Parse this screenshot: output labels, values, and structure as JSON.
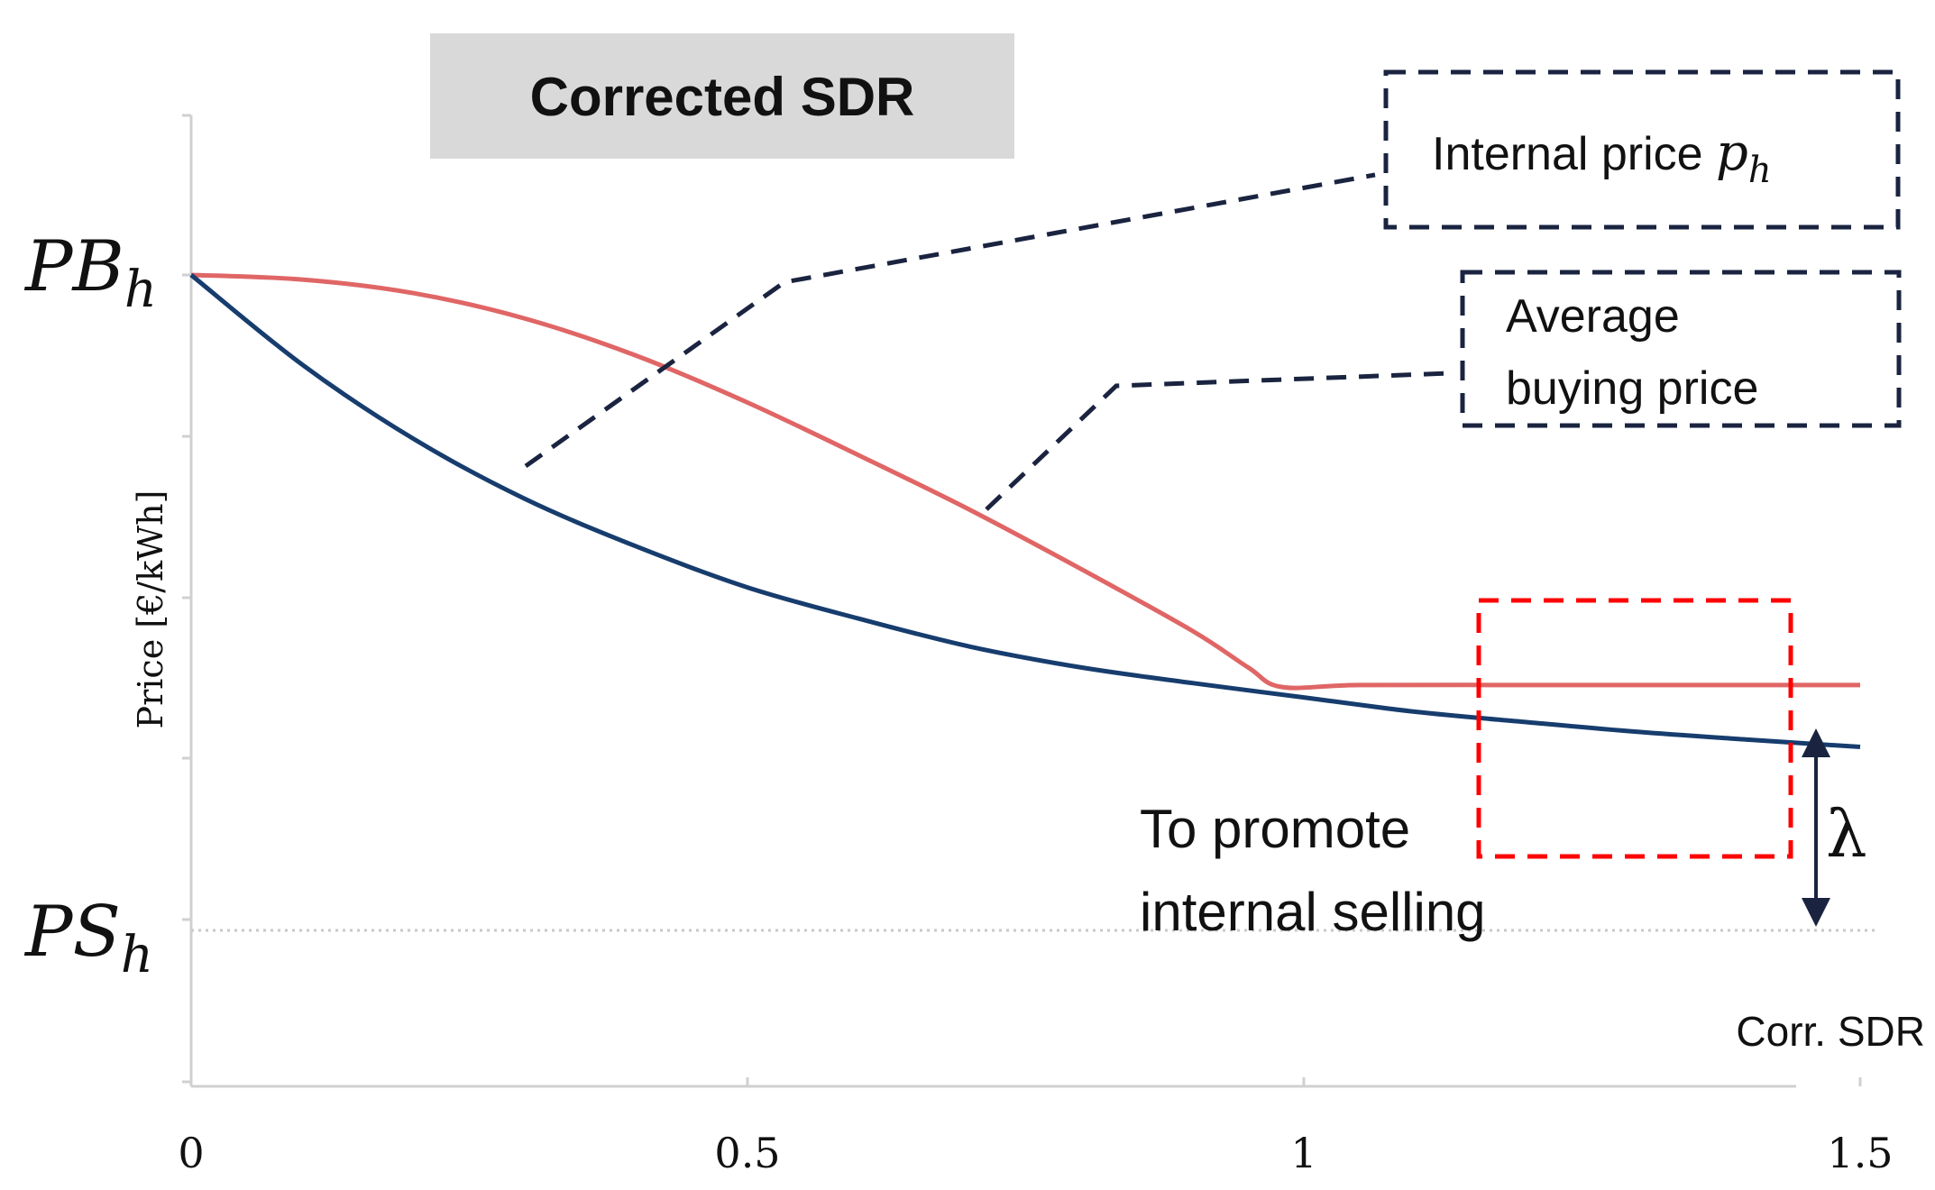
{
  "chart_data": {
    "type": "line",
    "title": "Corrected SDR",
    "xlabel": "Corr. SDR",
    "ylabel": "Price [€/kWh]",
    "xlim": [
      0,
      1.5
    ],
    "x_ticks": [
      "0",
      "0.5",
      "1",
      "1.5"
    ],
    "y_tick_labels": {
      "top_main": "PB",
      "top_sub": "h",
      "bottom_main": "PS",
      "bottom_sub": "h"
    },
    "grid": false,
    "series": [
      {
        "name": "Internal price p_h",
        "color": "#e06666",
        "x": [
          0,
          0.1,
          0.2,
          0.3,
          0.4,
          0.5,
          0.6,
          0.7,
          0.8,
          0.9,
          0.95,
          0.98,
          1.05,
          1.2,
          1.35,
          1.5
        ],
        "y": [
          1.0,
          0.993,
          0.972,
          0.933,
          0.876,
          0.804,
          0.723,
          0.639,
          0.548,
          0.453,
          0.397,
          0.367,
          0.37,
          0.37,
          0.37,
          0.37
        ]
      },
      {
        "name": "Average buying price",
        "color": "#173d6e",
        "x": [
          0,
          0.1,
          0.2,
          0.3,
          0.4,
          0.5,
          0.6,
          0.7,
          0.8,
          0.9,
          1.0,
          1.1,
          1.2,
          1.3,
          1.4,
          1.5
        ],
        "y": [
          1.0,
          0.862,
          0.748,
          0.656,
          0.583,
          0.52,
          0.472,
          0.429,
          0.397,
          0.373,
          0.351,
          0.329,
          0.313,
          0.298,
          0.286,
          0.275
        ]
      }
    ],
    "annotations": {
      "title_box": "Corrected SDR",
      "internal_price_text": "Internal price ",
      "internal_price_symbol": "p",
      "internal_price_sub": "h",
      "avg_line1": "Average",
      "avg_line2": "buying price",
      "promote_line1": "To promote",
      "promote_line2": "internal selling",
      "lambda": "λ"
    },
    "colors": {
      "internal_price": "#e06666",
      "average_buying_price": "#173d6e",
      "callout_dark": "#1a2440",
      "callout_red": "#ff0000",
      "title_box_bg": "#d9d9d9",
      "axis": "#d0d0d0"
    }
  }
}
